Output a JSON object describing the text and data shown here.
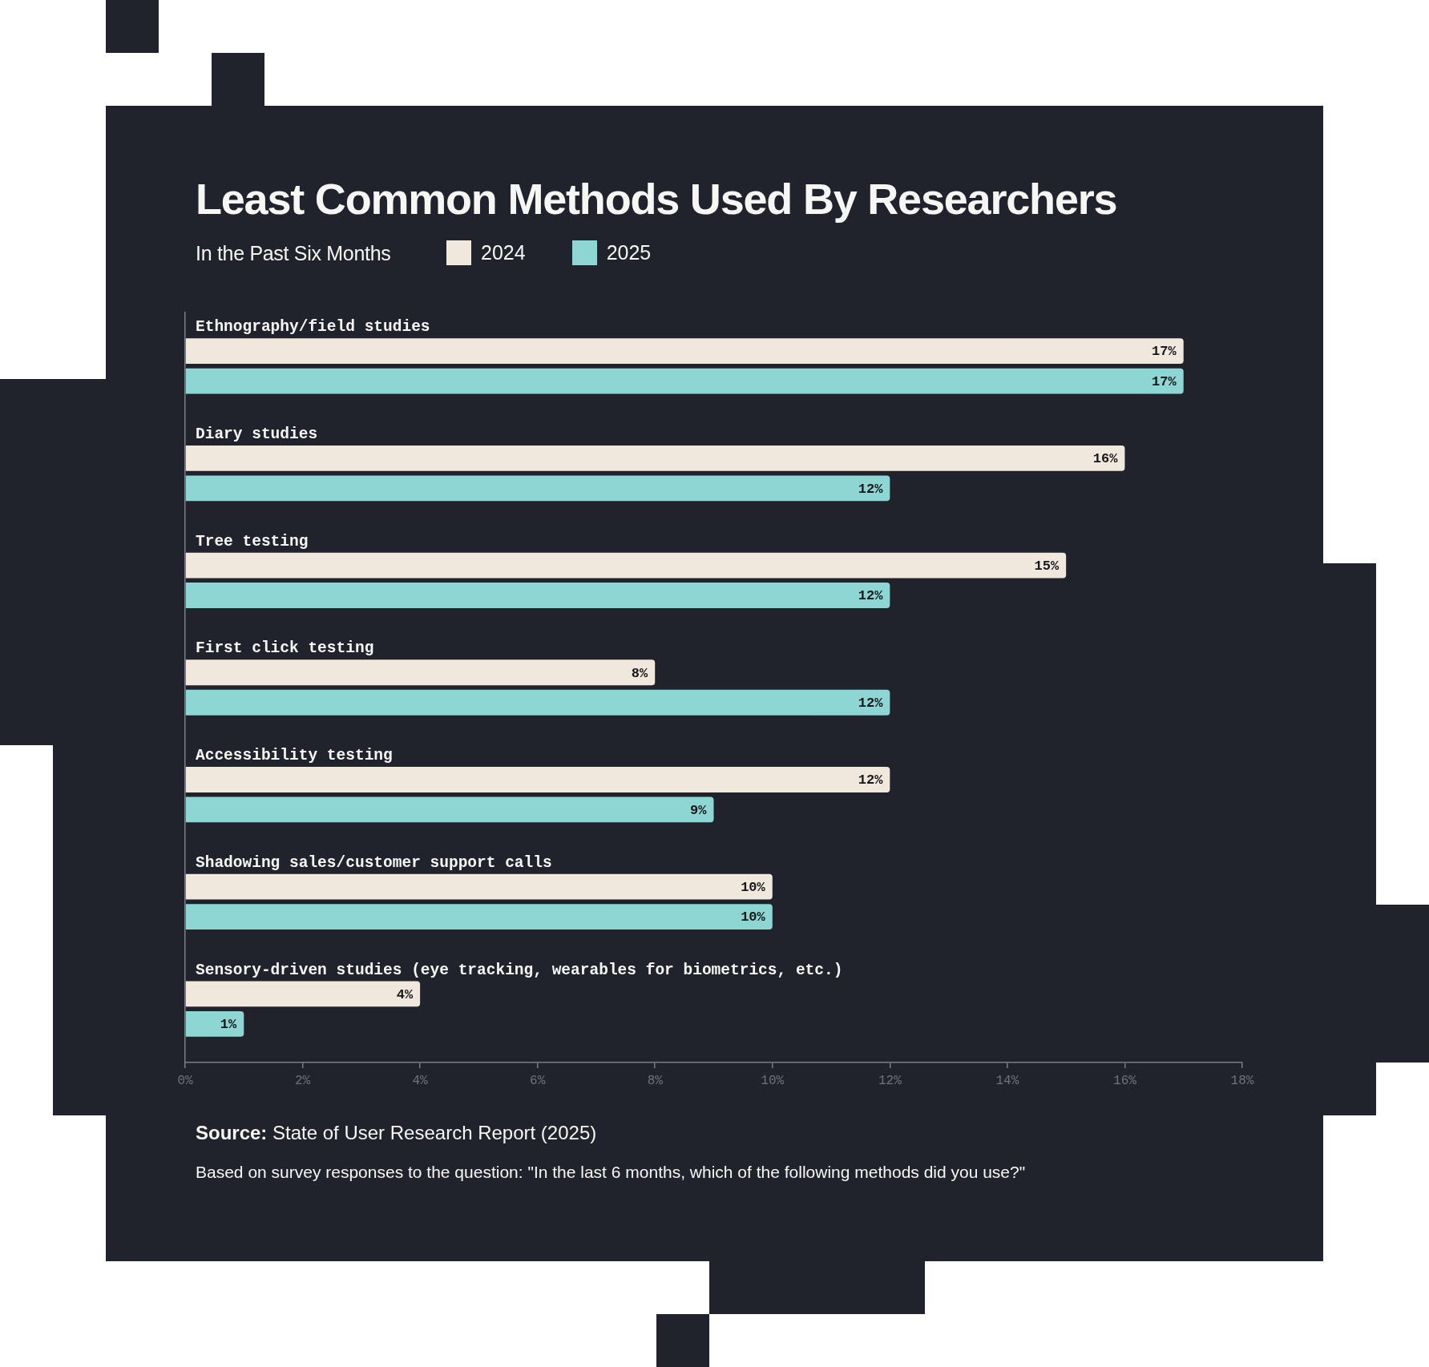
{
  "chart_data": {
    "type": "bar",
    "orientation": "horizontal",
    "title": "Least Common Methods Used By Researchers",
    "subtitle": "In the Past Six Months",
    "categories": [
      "Ethnography/field studies",
      "Diary studies",
      "Tree testing",
      "First click testing",
      "Accessibility testing",
      "Shadowing sales/customer support calls",
      "Sensory-driven studies (eye tracking, wearables for biometrics, etc.)"
    ],
    "series": [
      {
        "name": "2024",
        "color": "#f0e7dd",
        "values": [
          17,
          16,
          15,
          8,
          12,
          10,
          4
        ],
        "value_labels": [
          "17%",
          "16%",
          "15%",
          "8%",
          "12%",
          "10%",
          "4%"
        ]
      },
      {
        "name": "2025",
        "color": "#8dd6d3",
        "values": [
          17,
          12,
          12,
          12,
          9,
          10,
          1
        ],
        "value_labels": [
          "17%",
          "12%",
          "12%",
          "12%",
          "9%",
          "10%",
          "1%"
        ]
      }
    ],
    "xlim": [
      0,
      18
    ],
    "xticks": [
      {
        "value": 0,
        "label": "0%"
      },
      {
        "value": 2,
        "label": "2%"
      },
      {
        "value": 4,
        "label": "4%"
      },
      {
        "value": 6,
        "label": "6%"
      },
      {
        "value": 8,
        "label": "8%"
      },
      {
        "value": 10,
        "label": "10%"
      },
      {
        "value": 12,
        "label": "12%"
      },
      {
        "value": 14,
        "label": "14%"
      },
      {
        "value": 16,
        "label": "16%"
      },
      {
        "value": 18,
        "label": "18%"
      }
    ],
    "legend": "top left",
    "annotations": [
      "Source: State of User Research Report (2025)",
      "Based on survey responses to the question: \"In the last 6 months, which of the following methods did you use?\""
    ]
  }
}
